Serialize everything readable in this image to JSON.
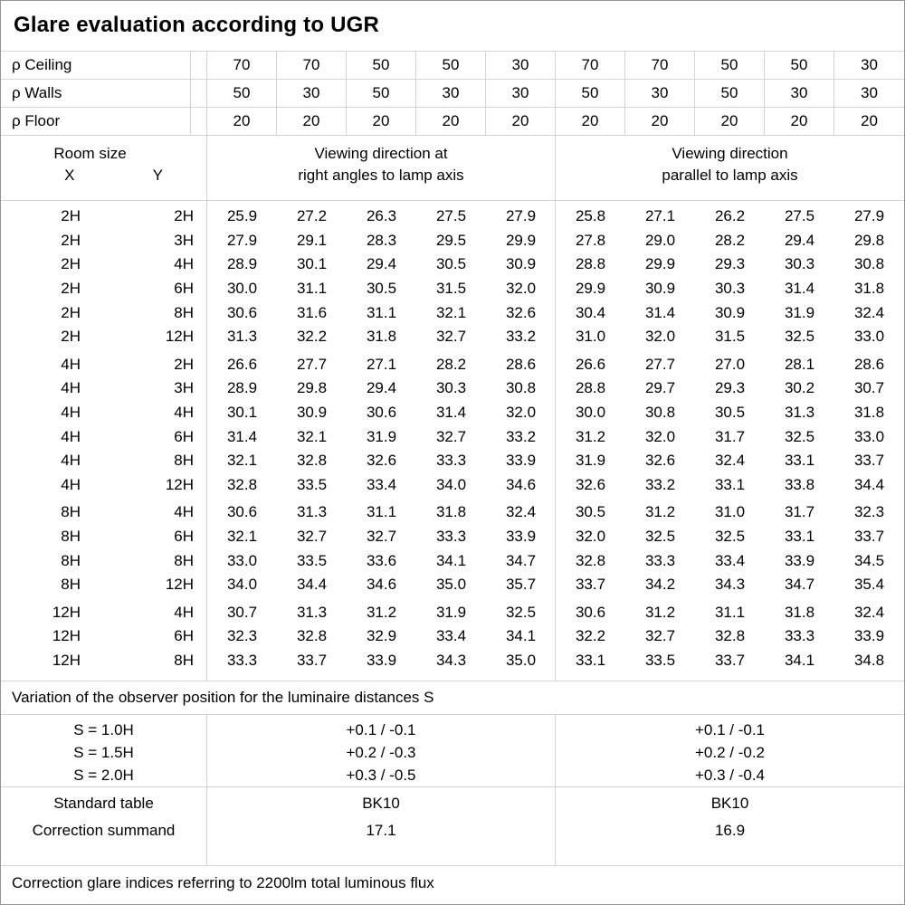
{
  "colors": {
    "background": "#ffffff",
    "grid_line": "#d4d4d4",
    "outer_border": "#949494",
    "text": "#000000"
  },
  "chart_data": {
    "type": "table",
    "title": "Glare evaluation according to UGR",
    "reflectance_rows": [
      {
        "label": "ρ Ceiling",
        "values": [
          "70",
          "70",
          "50",
          "50",
          "30",
          "70",
          "70",
          "50",
          "50",
          "30"
        ]
      },
      {
        "label": "ρ Walls",
        "values": [
          "50",
          "30",
          "50",
          "30",
          "30",
          "50",
          "30",
          "50",
          "30",
          "30"
        ]
      },
      {
        "label": "ρ Floor",
        "values": [
          "20",
          "20",
          "20",
          "20",
          "20",
          "20",
          "20",
          "20",
          "20",
          "20"
        ]
      }
    ],
    "header": {
      "room_size": "Room size",
      "x": "X",
      "y": "Y",
      "group1": [
        "Viewing direction at",
        "right angles to lamp axis"
      ],
      "group2": [
        "Viewing direction",
        "parallel to lamp axis"
      ]
    },
    "blocks": [
      [
        {
          "x": "2H",
          "y": "2H",
          "values": [
            "25.9",
            "27.2",
            "26.3",
            "27.5",
            "27.9",
            "25.8",
            "27.1",
            "26.2",
            "27.5",
            "27.9"
          ]
        },
        {
          "x": "2H",
          "y": "3H",
          "values": [
            "27.9",
            "29.1",
            "28.3",
            "29.5",
            "29.9",
            "27.8",
            "29.0",
            "28.2",
            "29.4",
            "29.8"
          ]
        },
        {
          "x": "2H",
          "y": "4H",
          "values": [
            "28.9",
            "30.1",
            "29.4",
            "30.5",
            "30.9",
            "28.8",
            "29.9",
            "29.3",
            "30.3",
            "30.8"
          ]
        },
        {
          "x": "2H",
          "y": "6H",
          "values": [
            "30.0",
            "31.1",
            "30.5",
            "31.5",
            "32.0",
            "29.9",
            "30.9",
            "30.3",
            "31.4",
            "31.8"
          ]
        },
        {
          "x": "2H",
          "y": "8H",
          "values": [
            "30.6",
            "31.6",
            "31.1",
            "32.1",
            "32.6",
            "30.4",
            "31.4",
            "30.9",
            "31.9",
            "32.4"
          ]
        },
        {
          "x": "2H",
          "y": "12H",
          "values": [
            "31.3",
            "32.2",
            "31.8",
            "32.7",
            "33.2",
            "31.0",
            "32.0",
            "31.5",
            "32.5",
            "33.0"
          ]
        }
      ],
      [
        {
          "x": "4H",
          "y": "2H",
          "values": [
            "26.6",
            "27.7",
            "27.1",
            "28.2",
            "28.6",
            "26.6",
            "27.7",
            "27.0",
            "28.1",
            "28.6"
          ]
        },
        {
          "x": "4H",
          "y": "3H",
          "values": [
            "28.9",
            "29.8",
            "29.4",
            "30.3",
            "30.8",
            "28.8",
            "29.7",
            "29.3",
            "30.2",
            "30.7"
          ]
        },
        {
          "x": "4H",
          "y": "4H",
          "values": [
            "30.1",
            "30.9",
            "30.6",
            "31.4",
            "32.0",
            "30.0",
            "30.8",
            "30.5",
            "31.3",
            "31.8"
          ]
        },
        {
          "x": "4H",
          "y": "6H",
          "values": [
            "31.4",
            "32.1",
            "31.9",
            "32.7",
            "33.2",
            "31.2",
            "32.0",
            "31.7",
            "32.5",
            "33.0"
          ]
        },
        {
          "x": "4H",
          "y": "8H",
          "values": [
            "32.1",
            "32.8",
            "32.6",
            "33.3",
            "33.9",
            "31.9",
            "32.6",
            "32.4",
            "33.1",
            "33.7"
          ]
        },
        {
          "x": "4H",
          "y": "12H",
          "values": [
            "32.8",
            "33.5",
            "33.4",
            "34.0",
            "34.6",
            "32.6",
            "33.2",
            "33.1",
            "33.8",
            "34.4"
          ]
        }
      ],
      [
        {
          "x": "8H",
          "y": "4H",
          "values": [
            "30.6",
            "31.3",
            "31.1",
            "31.8",
            "32.4",
            "30.5",
            "31.2",
            "31.0",
            "31.7",
            "32.3"
          ]
        },
        {
          "x": "8H",
          "y": "6H",
          "values": [
            "32.1",
            "32.7",
            "32.7",
            "33.3",
            "33.9",
            "32.0",
            "32.5",
            "32.5",
            "33.1",
            "33.7"
          ]
        },
        {
          "x": "8H",
          "y": "8H",
          "values": [
            "33.0",
            "33.5",
            "33.6",
            "34.1",
            "34.7",
            "32.8",
            "33.3",
            "33.4",
            "33.9",
            "34.5"
          ]
        },
        {
          "x": "8H",
          "y": "12H",
          "values": [
            "34.0",
            "34.4",
            "34.6",
            "35.0",
            "35.7",
            "33.7",
            "34.2",
            "34.3",
            "34.7",
            "35.4"
          ]
        }
      ],
      [
        {
          "x": "12H",
          "y": "4H",
          "values": [
            "30.7",
            "31.3",
            "31.2",
            "31.9",
            "32.5",
            "30.6",
            "31.2",
            "31.1",
            "31.8",
            "32.4"
          ]
        },
        {
          "x": "12H",
          "y": "6H",
          "values": [
            "32.3",
            "32.8",
            "32.9",
            "33.4",
            "34.1",
            "32.2",
            "32.7",
            "32.8",
            "33.3",
            "33.9"
          ]
        },
        {
          "x": "12H",
          "y": "8H",
          "values": [
            "33.3",
            "33.7",
            "33.9",
            "34.3",
            "35.0",
            "33.1",
            "33.5",
            "33.7",
            "34.1",
            "34.8"
          ]
        }
      ]
    ],
    "note": "Variation of the observer position for the luminaire distances S",
    "s_variation": {
      "rows": [
        {
          "label": "S = 1.0H",
          "right_angles": "+0.1 / -0.1",
          "parallel": "+0.1 / -0.1"
        },
        {
          "label": "S = 1.5H",
          "right_angles": "+0.2 / -0.3",
          "parallel": "+0.2 / -0.2"
        },
        {
          "label": "S = 2.0H",
          "right_angles": "+0.3 / -0.5",
          "parallel": "+0.3 / -0.4"
        }
      ]
    },
    "summary_rows": [
      {
        "label": "Standard table",
        "right_angles": "BK10",
        "parallel": "BK10"
      },
      {
        "label": "Correction summand",
        "right_angles": "17.1",
        "parallel": "16.9"
      }
    ],
    "footnote": "Correction glare indices referring to 2200lm total luminous flux"
  }
}
